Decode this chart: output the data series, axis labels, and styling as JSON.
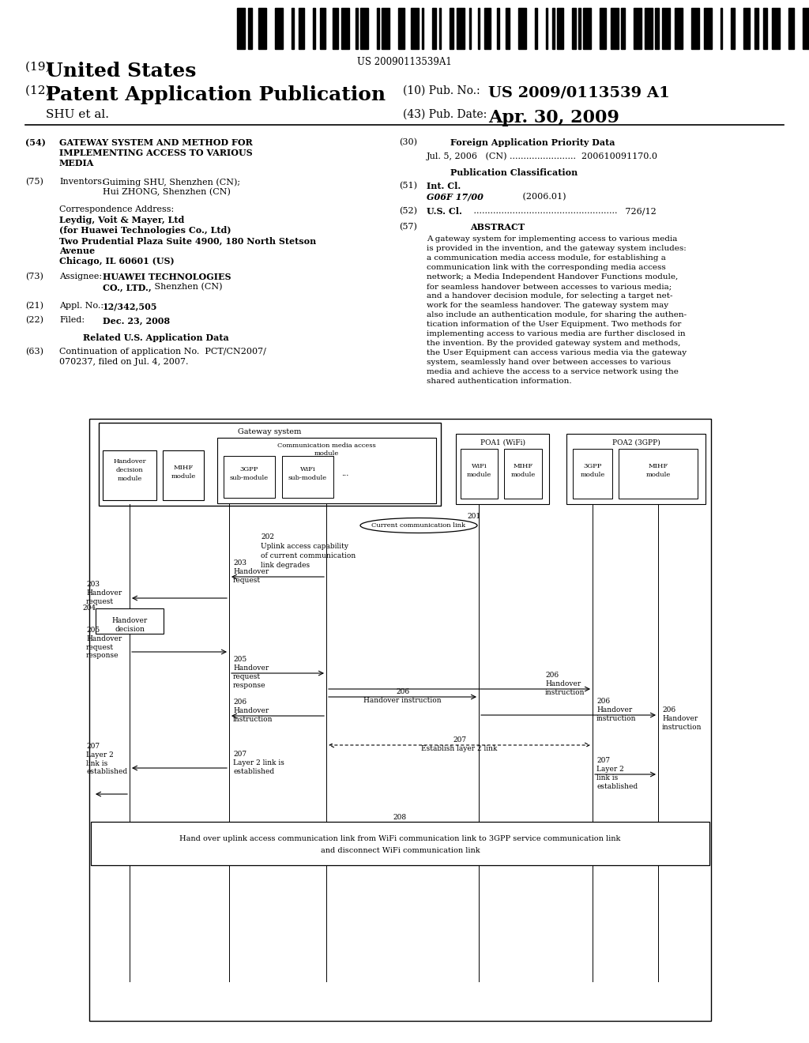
{
  "bg_color": "#ffffff",
  "barcode_text": "US 20090113539A1",
  "title_19": "(19) United States",
  "title_12_a": "(12) ",
  "title_12_b": "Patent Application Publication",
  "pub_no_label": "(10) Pub. No.:",
  "pub_no_val": "US 2009/0113539 A1",
  "pub_date_label": "(43) Pub. Date:",
  "pub_date_val": "Apr. 30, 2009",
  "shu_et_al": "SHU et al.",
  "field_54_label": "(54)",
  "field_54_line1": "GATEWAY SYSTEM AND METHOD FOR",
  "field_54_line2": "IMPLEMENTING ACCESS TO VARIOUS",
  "field_54_line3": "MEDIA",
  "field_75_label": "(75)",
  "field_75_title": "Inventors:",
  "field_75_line1": "Guiming SHU, Shenzhen (CN);",
  "field_75_line2": "Hui ZHONG, Shenzhen (CN)",
  "corr_addr_label": "Correspondence Address:",
  "corr_line1": "Leydig, Voit & Mayer, Ltd",
  "corr_line2": "(for Huawei Technologies Co., Ltd)",
  "corr_line3": "Two Prudential Plaza Suite 4900, 180 North Stetson",
  "corr_line4": "Avenue",
  "corr_line5": "Chicago, IL 60601 (US)",
  "field_73_label": "(73)",
  "field_73_title": "Assignee:",
  "field_73_line1a": "HUAWEI TECHNOLOGIES",
  "field_73_line2a": "CO., LTD.,",
  "field_73_line2b": " Shenzhen (CN)",
  "field_21_label": "(21)",
  "field_21_title": "Appl. No.:",
  "field_21_text": "12/342,505",
  "field_22_label": "(22)",
  "field_22_title": "Filed:",
  "field_22_text": "Dec. 23, 2008",
  "related_us_label": "Related U.S. Application Data",
  "field_63_label": "(63)",
  "field_63_line1": "Continuation of application No. PCT/CN2007/",
  "field_63_line2": "070237, filed on Jul. 4, 2007.",
  "field_30_label": "(30)",
  "field_30_title": "Foreign Application Priority Data",
  "field_30_text": "Jul. 5, 2006   (CN) ........................  200610091170.0",
  "pub_class_title": "Publication Classification",
  "field_51_label": "(51)",
  "field_51_title": "Int. Cl.",
  "field_51_italic": "G06F 17/00",
  "field_51_year": "         (2006.01)",
  "field_52_label": "(52)",
  "field_52_title": "U.S. Cl.",
  "field_52_dots": " ....................................................",
  "field_52_text": " 726/12",
  "field_57_label": "(57)",
  "field_57_title": "ABSTRACT",
  "abstract_lines": [
    "A gateway system for implementing access to various media",
    "is provided in the invention, and the gateway system includes:",
    "a communication media access module, for establishing a",
    "communication link with the corresponding media access",
    "network; a Media Independent Handover Functions module,",
    "for seamless handover between accesses to various media;",
    "and a handover decision module, for selecting a target net-",
    "work for the seamless handover. The gateway system may",
    "also include an authentication module, for sharing the authen-",
    "tication information of the User Equipment. Two methods for",
    "implementing access to various media are further disclosed in",
    "the invention. By the provided gateway system and methods,",
    "the User Equipment can access various media via the gateway",
    "system, seamlessly hand over between accesses to various",
    "media and achieve the access to a service network using the",
    "shared authentication information."
  ]
}
